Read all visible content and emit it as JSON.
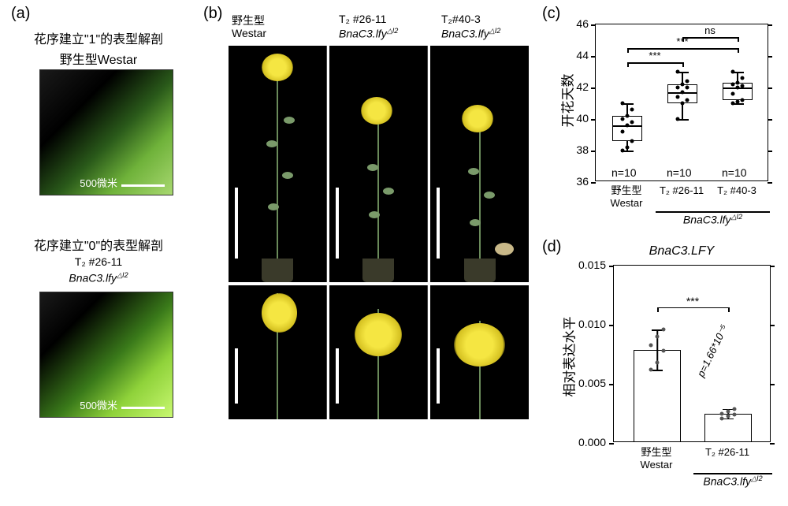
{
  "panels": {
    "a": "(a)",
    "b": "(b)",
    "c": "(c)",
    "d": "(d)"
  },
  "a": {
    "title1": "花序建立\"1\"的表型解剖",
    "sub1": "野生型Westar",
    "title2": "花序建立\"0\"的表型解剖",
    "sub2_line1": "T₂ #26-11",
    "sub2_line2": "BnaC3.lfy",
    "sub2_sup": "△I2",
    "scale_label": "500微米"
  },
  "b": {
    "col1_line1": "野生型",
    "col1_line2": "Westar",
    "col2_line1": "T₂ #26-11",
    "col2_line2": "BnaC3.lfy",
    "col2_sup": "△I2",
    "col3_line1": "T₂#40-3",
    "col3_line2": "BnaC3.lfy",
    "col3_sup": "△I2"
  },
  "c": {
    "type": "boxplot",
    "ylabel": "开花天数",
    "ylim": [
      36,
      46
    ],
    "yticks": [
      36,
      38,
      40,
      42,
      44,
      46
    ],
    "categories": [
      "野生型\nWestar",
      "T₂ #26-11",
      "T₂ #40-3"
    ],
    "gene_underline": "BnaC3.lfy",
    "gene_sup": "△I2",
    "n_label": "n=10",
    "series": [
      {
        "min": 38.0,
        "q1": 38.6,
        "median": 39.6,
        "q3": 40.2,
        "max": 41.0,
        "points": [
          38.0,
          38.2,
          38.6,
          39.2,
          39.6,
          39.8,
          40.0,
          40.2,
          40.6,
          41.0
        ]
      },
      {
        "min": 40.0,
        "q1": 41.0,
        "median": 41.7,
        "q3": 42.2,
        "max": 43.0,
        "points": [
          40.0,
          41.0,
          41.2,
          41.4,
          41.7,
          42.0,
          42.0,
          42.2,
          42.4,
          43.0
        ]
      },
      {
        "min": 41.0,
        "q1": 41.2,
        "median": 42.0,
        "q3": 42.3,
        "max": 43.0,
        "points": [
          41.0,
          41.1,
          41.2,
          41.6,
          42.0,
          42.1,
          42.2,
          42.3,
          42.6,
          43.0
        ]
      }
    ],
    "stats": [
      {
        "i": 0,
        "j": 1,
        "label": "***",
        "y": 43.6
      },
      {
        "i": 0,
        "j": 2,
        "label": "***",
        "y": 44.5
      },
      {
        "i": 1,
        "j": 2,
        "label": "ns",
        "y": 45.2
      }
    ],
    "colors": {
      "box_border": "#000000",
      "box_fill": "#ffffff",
      "point": "#000000"
    }
  },
  "d": {
    "type": "bar",
    "gene_title": "BnaC3.LFY",
    "ylabel": "相对表达水平",
    "ylim": [
      0.0,
      0.015
    ],
    "yticks": [
      "0.000",
      "0.005",
      "0.010",
      "0.015"
    ],
    "ytick_vals": [
      0.0,
      0.005,
      0.01,
      0.015
    ],
    "categories": [
      "野生型\nWestar",
      "T₂ #26-11"
    ],
    "gene_underline": "BnaC3.lfy",
    "gene_sup": "△I2",
    "bars": [
      {
        "mean": 0.0079,
        "err": 0.0017,
        "points": [
          0.0062,
          0.0068,
          0.0078,
          0.0083,
          0.009,
          0.0096
        ]
      },
      {
        "mean": 0.0025,
        "err": 0.0004,
        "points": [
          0.0021,
          0.0023,
          0.0024,
          0.0025,
          0.0027,
          0.0029
        ]
      }
    ],
    "stat_label": "***",
    "stat_y": 0.0115,
    "p_text": "p=1.66*10⁻⁵",
    "colors": {
      "bar_border": "#000000",
      "bar_fill": "#ffffff",
      "point": "#555555"
    }
  }
}
